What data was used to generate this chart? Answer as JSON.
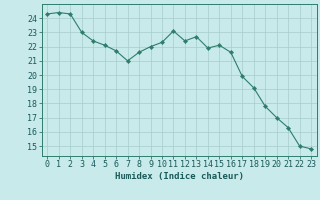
{
  "x": [
    0,
    1,
    2,
    3,
    4,
    5,
    6,
    7,
    8,
    9,
    10,
    11,
    12,
    13,
    14,
    15,
    16,
    17,
    18,
    19,
    20,
    21,
    22,
    23
  ],
  "y": [
    24.3,
    24.4,
    24.3,
    23.0,
    22.4,
    22.1,
    21.7,
    21.0,
    21.6,
    22.0,
    22.3,
    23.1,
    22.4,
    22.7,
    21.9,
    22.1,
    21.6,
    19.9,
    19.1,
    17.8,
    17.0,
    16.3,
    15.0,
    14.8
  ],
  "line_color": "#2e7d6b",
  "marker": "D",
  "marker_size": 2.2,
  "bg_color": "#c8eaea",
  "grid_color": "#a8cccc",
  "text_color": "#1a5a5a",
  "xlabel": "Humidex (Indice chaleur)",
  "ylabel_ticks": [
    15,
    16,
    17,
    18,
    19,
    20,
    21,
    22,
    23,
    24
  ],
  "ylim": [
    14.3,
    25.0
  ],
  "xlim": [
    -0.5,
    23.5
  ],
  "xlabel_fontsize": 6.5,
  "tick_fontsize": 6.0
}
